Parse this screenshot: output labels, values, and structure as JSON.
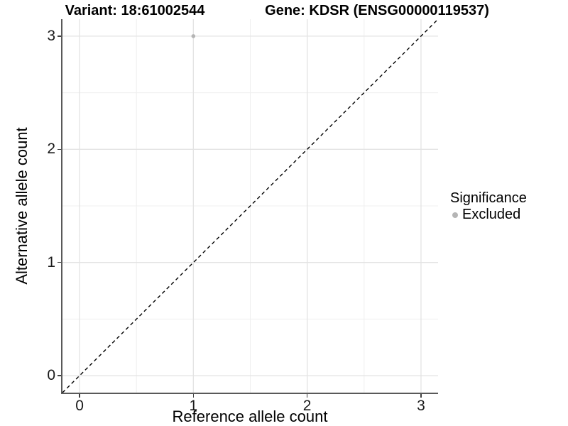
{
  "titles": {
    "variant": "Variant: 18:61002544",
    "gene": "Gene: KDSR (ENSG00000119537)"
  },
  "axes": {
    "x": {
      "label": "Reference allele count"
    },
    "y": {
      "label": "Alternative allele count"
    }
  },
  "legend": {
    "title": "Significance",
    "items": [
      {
        "label": "Excluded",
        "color": "#b5b5b5"
      }
    ]
  },
  "chart_data": {
    "type": "scatter",
    "title": "Variant: 18:61002544 | Gene: KDSR (ENSG00000119537)",
    "xlabel": "Reference allele count",
    "ylabel": "Alternative allele count",
    "xlim": [
      -0.15,
      3.15
    ],
    "ylim": [
      -0.15,
      3.15
    ],
    "x_ticks": [
      0,
      1,
      2,
      3
    ],
    "y_ticks": [
      0,
      1,
      2,
      3
    ],
    "x_minor_ticks": [
      0.5,
      1.5,
      2.5
    ],
    "y_minor_ticks": [
      0.5,
      1.5,
      2.5
    ],
    "grid": "on",
    "legend_position": "right",
    "series": [
      {
        "name": "Excluded",
        "color": "#b5b5b5",
        "points": [
          {
            "x": 1,
            "y": 3
          }
        ]
      }
    ],
    "reference_line": {
      "slope": 1,
      "intercept": 0,
      "style": "dashed",
      "color": "#000000"
    }
  }
}
